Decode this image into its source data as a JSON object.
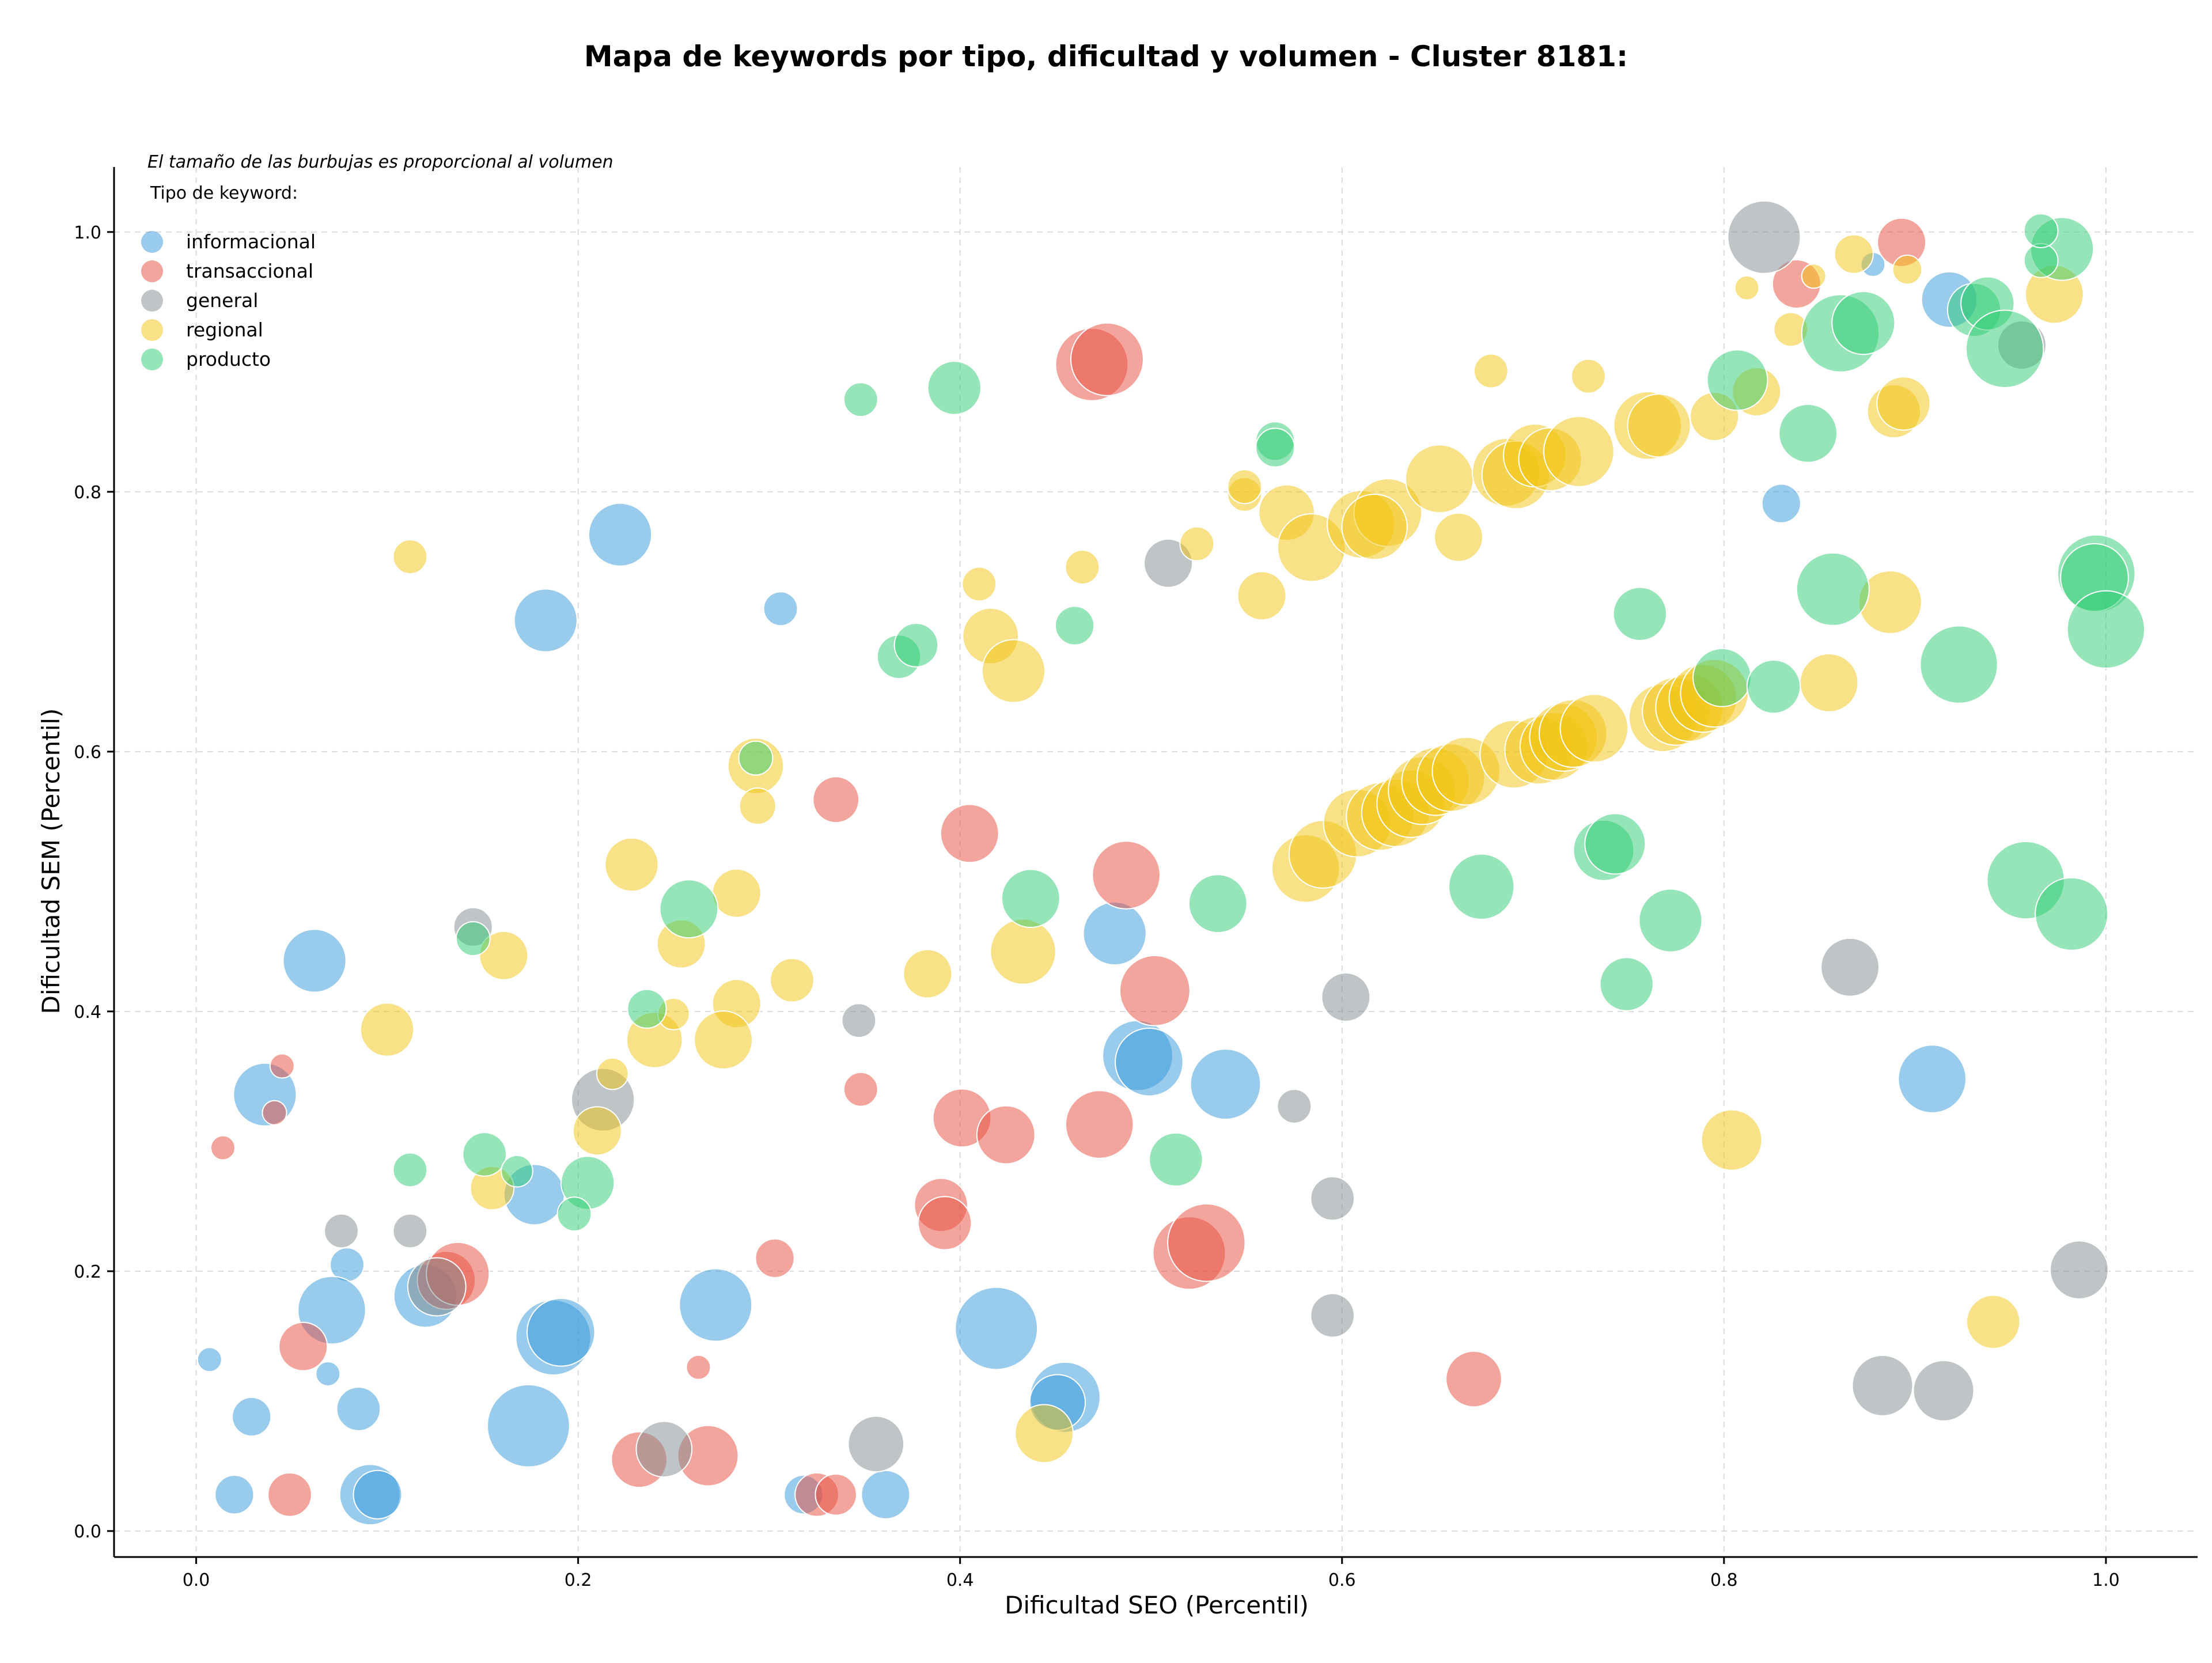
{
  "chart_data": {
    "type": "scatter",
    "title": "Mapa de keywords por tipo, dificultad y volumen - Cluster 8181:",
    "xlabel": "Dificultad SEO (Percentil)",
    "ylabel": "Dificultad SEM (Percentil)",
    "xlim": [
      -0.043,
      1.048
    ],
    "ylim": [
      -0.02,
      1.05
    ],
    "xticks": [
      0.0,
      0.2,
      0.4,
      0.6,
      0.8,
      1.0
    ],
    "yticks": [
      0.0,
      0.2,
      0.4,
      0.6,
      0.8,
      1.0
    ],
    "xtick_labels": [
      "0.0",
      "0.2",
      "0.4",
      "0.6",
      "0.8",
      "1.0"
    ],
    "ytick_labels": [
      "0.0",
      "0.2",
      "0.4",
      "0.6",
      "0.8",
      "1.0"
    ],
    "grid": true,
    "legend_placement": "top-left",
    "annotation": "El tamaño de las burbujas es proporcional al volumen",
    "legend_title": "Tipo de keyword:",
    "series": [
      {
        "name": "informacional",
        "color": "#3498db",
        "points": [
          [
            0.222,
            0.767,
            2.6
          ],
          [
            0.183,
            0.701,
            2.6
          ],
          [
            0.306,
            0.71,
            1.4
          ],
          [
            0.062,
            0.439,
            2.6
          ],
          [
            0.036,
            0.336,
            2.6
          ],
          [
            0.481,
            0.46,
            2.6
          ],
          [
            0.493,
            0.366,
            2.9
          ],
          [
            0.499,
            0.361,
            2.8
          ],
          [
            0.539,
            0.344,
            2.9
          ],
          [
            0.909,
            0.348,
            2.8
          ],
          [
            0.177,
            0.259,
            2.5
          ],
          [
            0.079,
            0.205,
            1.4
          ],
          [
            0.071,
            0.17,
            2.8
          ],
          [
            0.12,
            0.181,
            2.6
          ],
          [
            0.187,
            0.149,
            3.1
          ],
          [
            0.191,
            0.153,
            2.8
          ],
          [
            0.272,
            0.174,
            3.0
          ],
          [
            0.419,
            0.156,
            3.4
          ],
          [
            0.455,
            0.103,
            2.9
          ],
          [
            0.451,
            0.099,
            2.3
          ],
          [
            0.007,
            0.132,
            1.0
          ],
          [
            0.069,
            0.121,
            1.0
          ],
          [
            0.085,
            0.094,
            1.8
          ],
          [
            0.029,
            0.088,
            1.6
          ],
          [
            0.02,
            0.028,
            1.6
          ],
          [
            0.174,
            0.081,
            3.4
          ],
          [
            0.091,
            0.028,
            2.5
          ],
          [
            0.095,
            0.028,
            2.0
          ],
          [
            0.318,
            0.028,
            1.6
          ],
          [
            0.361,
            0.028,
            2.0
          ],
          [
            0.83,
            0.791,
            1.6
          ],
          [
            0.918,
            0.948,
            2.3
          ],
          [
            0.878,
            0.975,
            1.0
          ]
        ]
      },
      {
        "name": "transaccional",
        "color": "#e74c3c",
        "points": [
          [
            0.469,
            0.898,
            3.0
          ],
          [
            0.477,
            0.902,
            3.0
          ],
          [
            0.335,
            0.563,
            1.9
          ],
          [
            0.405,
            0.537,
            2.4
          ],
          [
            0.487,
            0.505,
            2.8
          ],
          [
            0.502,
            0.416,
            2.9
          ],
          [
            0.045,
            0.358,
            1.0
          ],
          [
            0.041,
            0.322,
            1.0
          ],
          [
            0.014,
            0.295,
            1.0
          ],
          [
            0.348,
            0.34,
            1.4
          ],
          [
            0.401,
            0.318,
            2.4
          ],
          [
            0.424,
            0.305,
            2.4
          ],
          [
            0.473,
            0.313,
            2.8
          ],
          [
            0.39,
            0.251,
            2.2
          ],
          [
            0.392,
            0.237,
            2.2
          ],
          [
            0.303,
            0.21,
            1.6
          ],
          [
            0.52,
            0.214,
            3.0
          ],
          [
            0.529,
            0.222,
            3.2
          ],
          [
            0.131,
            0.193,
            2.4
          ],
          [
            0.137,
            0.198,
            2.6
          ],
          [
            0.056,
            0.142,
            2.0
          ],
          [
            0.263,
            0.126,
            1.0
          ],
          [
            0.049,
            0.028,
            1.8
          ],
          [
            0.232,
            0.055,
            2.3
          ],
          [
            0.268,
            0.058,
            2.5
          ],
          [
            0.325,
            0.028,
            1.8
          ],
          [
            0.335,
            0.028,
            1.7
          ],
          [
            0.669,
            0.117,
            2.3
          ],
          [
            0.838,
            0.96,
            2.0
          ],
          [
            0.893,
            0.992,
            2.0
          ]
        ]
      },
      {
        "name": "general",
        "color": "#7f8c8d",
        "points": [
          [
            0.821,
            0.996,
            3.0
          ],
          [
            0.509,
            0.745,
            2.0
          ],
          [
            0.145,
            0.465,
            1.6
          ],
          [
            0.347,
            0.393,
            1.4
          ],
          [
            0.602,
            0.411,
            2.0
          ],
          [
            0.213,
            0.332,
            2.6
          ],
          [
            0.575,
            0.327,
            1.4
          ],
          [
            0.595,
            0.256,
            1.8
          ],
          [
            0.076,
            0.231,
            1.4
          ],
          [
            0.112,
            0.231,
            1.4
          ],
          [
            0.126,
            0.188,
            2.4
          ],
          [
            0.595,
            0.166,
            1.8
          ],
          [
            0.866,
            0.434,
            2.4
          ],
          [
            0.986,
            0.201,
            2.4
          ],
          [
            0.883,
            0.112,
            2.5
          ],
          [
            0.915,
            0.108,
            2.5
          ],
          [
            0.356,
            0.067,
            2.3
          ],
          [
            0.245,
            0.063,
            2.3
          ],
          [
            0.956,
            0.913,
            2.0
          ]
        ]
      },
      {
        "name": "regional",
        "color": "#f1c40f",
        "points": [
          [
            0.112,
            0.75,
            1.4
          ],
          [
            0.293,
            0.589,
            2.3
          ],
          [
            0.294,
            0.558,
            1.5
          ],
          [
            0.228,
            0.513,
            2.2
          ],
          [
            0.254,
            0.452,
            2.0
          ],
          [
            0.283,
            0.491,
            2.0
          ],
          [
            0.161,
            0.443,
            2.0
          ],
          [
            0.312,
            0.424,
            1.8
          ],
          [
            0.383,
            0.429,
            2.0
          ],
          [
            0.1,
            0.386,
            2.2
          ],
          [
            0.24,
            0.378,
            2.3
          ],
          [
            0.25,
            0.398,
            1.3
          ],
          [
            0.283,
            0.406,
            2.0
          ],
          [
            0.276,
            0.378,
            2.4
          ],
          [
            0.218,
            0.352,
            1.3
          ],
          [
            0.21,
            0.308,
            2.0
          ],
          [
            0.155,
            0.264,
            1.8
          ],
          [
            0.41,
            0.729,
            1.4
          ],
          [
            0.464,
            0.742,
            1.4
          ],
          [
            0.416,
            0.689,
            2.3
          ],
          [
            0.428,
            0.662,
            2.6
          ],
          [
            0.433,
            0.446,
            2.7
          ],
          [
            0.444,
            0.075,
            2.4
          ],
          [
            0.524,
            0.76,
            1.4
          ],
          [
            0.549,
            0.798,
            1.4
          ],
          [
            0.549,
            0.804,
            1.4
          ],
          [
            0.558,
            0.72,
            2.0
          ],
          [
            0.571,
            0.784,
            2.3
          ],
          [
            0.584,
            0.757,
            2.8
          ],
          [
            0.61,
            0.775,
            2.8
          ],
          [
            0.624,
            0.784,
            2.8
          ],
          [
            0.617,
            0.773,
            2.7
          ],
          [
            0.651,
            0.81,
            2.8
          ],
          [
            0.661,
            0.765,
            2.0
          ],
          [
            0.678,
            0.893,
            1.4
          ],
          [
            0.686,
            0.815,
            2.8
          ],
          [
            0.691,
            0.813,
            2.8
          ],
          [
            0.701,
            0.828,
            2.6
          ],
          [
            0.709,
            0.825,
            2.6
          ],
          [
            0.724,
            0.831,
            2.9
          ],
          [
            0.729,
            0.889,
            1.4
          ],
          [
            0.76,
            0.851,
            2.8
          ],
          [
            0.766,
            0.851,
            2.6
          ],
          [
            0.795,
            0.858,
            2.0
          ],
          [
            0.812,
            0.957,
            1.0
          ],
          [
            0.817,
            0.877,
            2.0
          ],
          [
            0.835,
            0.925,
            1.4
          ],
          [
            0.847,
            0.966,
            1.0
          ],
          [
            0.868,
            0.983,
            1.6
          ],
          [
            0.896,
            0.971,
            1.2
          ],
          [
            0.889,
            0.862,
            2.2
          ],
          [
            0.894,
            0.868,
            2.2
          ],
          [
            0.887,
            0.715,
            2.6
          ],
          [
            0.855,
            0.653,
            2.4
          ],
          [
            0.973,
            0.952,
            2.4
          ],
          [
            0.581,
            0.51,
            2.8
          ],
          [
            0.59,
            0.521,
            2.8
          ],
          [
            0.608,
            0.545,
            2.8
          ],
          [
            0.62,
            0.55,
            2.8
          ],
          [
            0.628,
            0.553,
            2.8
          ],
          [
            0.636,
            0.56,
            2.8
          ],
          [
            0.642,
            0.57,
            2.8
          ],
          [
            0.649,
            0.577,
            2.8
          ],
          [
            0.657,
            0.58,
            2.8
          ],
          [
            0.665,
            0.585,
            2.8
          ],
          [
            0.69,
            0.598,
            2.8
          ],
          [
            0.703,
            0.601,
            2.8
          ],
          [
            0.711,
            0.604,
            2.8
          ],
          [
            0.716,
            0.611,
            2.8
          ],
          [
            0.721,
            0.614,
            2.8
          ],
          [
            0.732,
            0.618,
            2.8
          ],
          [
            0.768,
            0.626,
            2.8
          ],
          [
            0.775,
            0.631,
            2.8
          ],
          [
            0.782,
            0.634,
            2.8
          ],
          [
            0.789,
            0.641,
            2.8
          ],
          [
            0.795,
            0.645,
            2.8
          ],
          [
            0.804,
            0.301,
            2.5
          ],
          [
            0.941,
            0.161,
            2.2
          ]
        ]
      },
      {
        "name": "producto",
        "color": "#2ecc71",
        "points": [
          [
            0.348,
            0.871,
            1.4
          ],
          [
            0.397,
            0.88,
            2.2
          ],
          [
            0.565,
            0.839,
            1.6
          ],
          [
            0.565,
            0.834,
            1.6
          ],
          [
            0.46,
            0.697,
            1.6
          ],
          [
            0.368,
            0.673,
            1.8
          ],
          [
            0.377,
            0.682,
            1.8
          ],
          [
            0.293,
            0.595,
            1.4
          ],
          [
            0.258,
            0.479,
            2.4
          ],
          [
            0.145,
            0.456,
            1.4
          ],
          [
            0.236,
            0.402,
            1.6
          ],
          [
            0.151,
            0.29,
            1.8
          ],
          [
            0.168,
            0.277,
            1.3
          ],
          [
            0.112,
            0.278,
            1.4
          ],
          [
            0.205,
            0.268,
            2.2
          ],
          [
            0.198,
            0.244,
            1.4
          ],
          [
            0.437,
            0.487,
            2.4
          ],
          [
            0.535,
            0.483,
            2.4
          ],
          [
            0.513,
            0.286,
            2.2
          ],
          [
            0.673,
            0.496,
            2.7
          ],
          [
            0.737,
            0.524,
            2.5
          ],
          [
            0.743,
            0.529,
            2.5
          ],
          [
            0.749,
            0.421,
            2.2
          ],
          [
            0.772,
            0.47,
            2.6
          ],
          [
            0.756,
            0.706,
            2.2
          ],
          [
            0.799,
            0.657,
            2.4
          ],
          [
            0.826,
            0.65,
            2.2
          ],
          [
            0.807,
            0.886,
            2.5
          ],
          [
            0.844,
            0.845,
            2.4
          ],
          [
            0.857,
            0.725,
            3.0
          ],
          [
            0.861,
            0.922,
            3.2
          ],
          [
            0.873,
            0.93,
            2.6
          ],
          [
            0.923,
            0.667,
            3.2
          ],
          [
            0.931,
            0.94,
            2.2
          ],
          [
            0.938,
            0.945,
            2.2
          ],
          [
            0.947,
            0.91,
            3.2
          ],
          [
            0.958,
            0.501,
            3.2
          ],
          [
            0.982,
            0.475,
            3.0
          ],
          [
            0.995,
            0.737,
            3.2
          ],
          [
            0.994,
            0.734,
            2.8
          ],
          [
            1.0,
            0.694,
            3.2
          ],
          [
            0.977,
            0.987,
            2.6
          ],
          [
            0.966,
            0.978,
            1.4
          ],
          [
            0.966,
            1.001,
            1.4
          ]
        ]
      }
    ]
  }
}
